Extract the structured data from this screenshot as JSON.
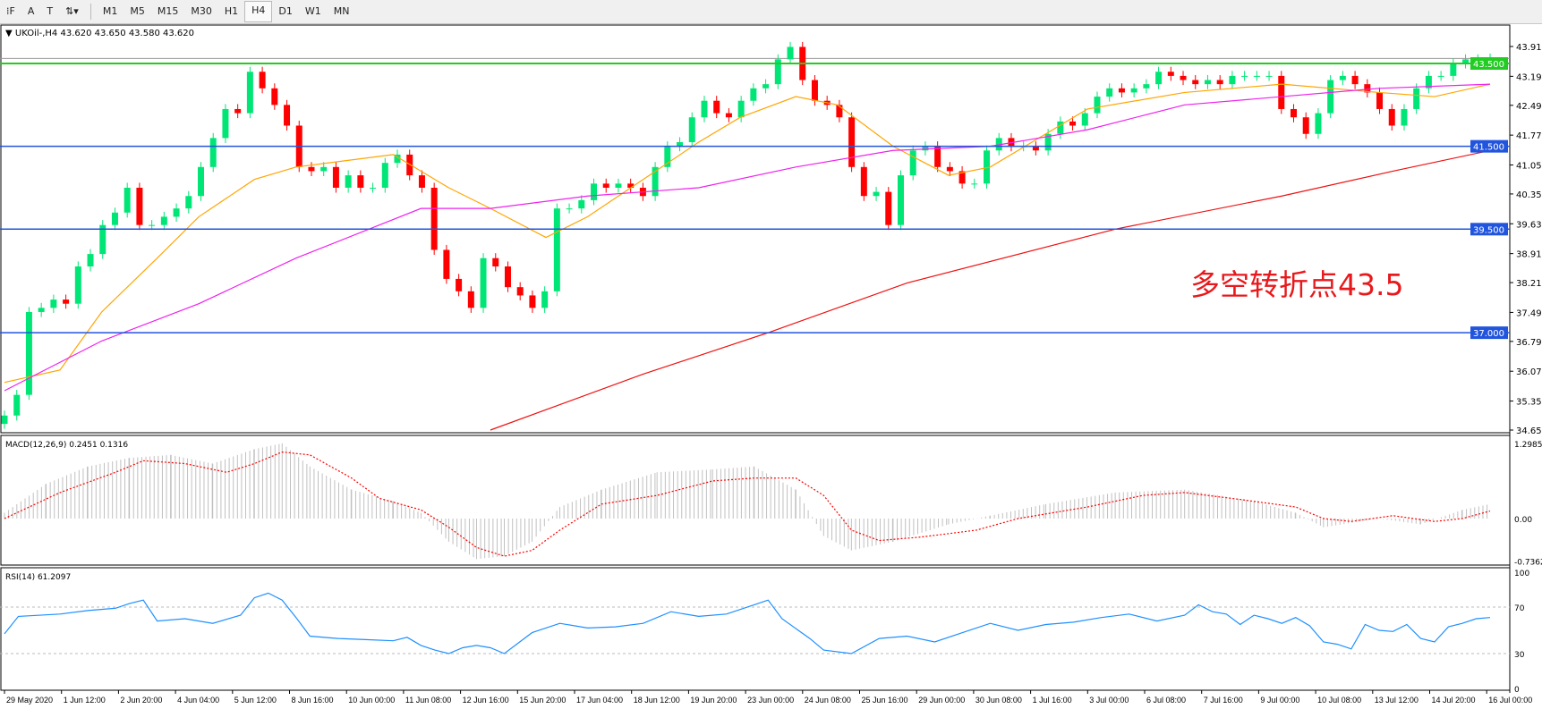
{
  "toolbar": {
    "tools": [
      {
        "name": "fibo-tool",
        "glyph": "⁞F"
      },
      {
        "name": "text-tool",
        "glyph": "A"
      },
      {
        "name": "label-tool",
        "glyph": "T"
      },
      {
        "name": "arrows-tool",
        "glyph": "⇅▾"
      }
    ],
    "timeframes": [
      "M1",
      "M5",
      "M15",
      "M30",
      "H1",
      "H4",
      "D1",
      "W1",
      "MN"
    ],
    "active_timeframe": "H4"
  },
  "main": {
    "title": "UKOil-,H4  43.620 43.650 43.580 43.620",
    "annotation": "多空转折点43.5",
    "annotation_color": "#e8191c",
    "price_ticks": [
      "43.910",
      "43.190",
      "42.490",
      "41.770",
      "41.050",
      "40.350",
      "39.630",
      "38.910",
      "38.210",
      "37.490",
      "36.790",
      "36.070",
      "35.350",
      "34.650"
    ],
    "current_price": "43.620",
    "levels": [
      {
        "label": "43.500",
        "value": 43.5,
        "color": "#22cc22"
      },
      {
        "label": "41.500",
        "value": 41.5,
        "color": "#2255dd"
      },
      {
        "label": "39.500",
        "value": 39.5,
        "color": "#2255dd"
      },
      {
        "label": "37.000",
        "value": 37.0,
        "color": "#2255dd"
      }
    ]
  },
  "macd": {
    "title": "MACD(12,26,9) 0.2451 0.1316",
    "ticks": [
      "1.2985",
      "0.00",
      "-0.7362"
    ]
  },
  "rsi": {
    "title": "RSI(14) 61.2097",
    "ticks": [
      "100",
      "70",
      "30",
      "0"
    ]
  },
  "time_labels": [
    "29 May 2020",
    "1 Jun 12:00",
    "2 Jun 20:00",
    "4 Jun 04:00",
    "5 Jun 12:00",
    "8 Jun 16:00",
    "10 Jun 00:00",
    "11 Jun 08:00",
    "12 Jun 16:00",
    "15 Jun 20:00",
    "17 Jun 04:00",
    "18 Jun 12:00",
    "19 Jun 20:00",
    "23 Jun 00:00",
    "24 Jun 08:00",
    "25 Jun 16:00",
    "29 Jun 00:00",
    "30 Jun 08:00",
    "1 Jul 16:00",
    "3 Jul 00:00",
    "6 Jul 08:00",
    "7 Jul 16:00",
    "9 Jul 00:00",
    "10 Jul 08:00",
    "13 Jul 12:00",
    "14 Jul 20:00",
    "16 Jul 00:00"
  ],
  "chart_data": {
    "type": "candlestick",
    "symbol": "UKOil-",
    "timeframe": "H4",
    "ylim": [
      34.65,
      43.91
    ],
    "closes": [
      35.0,
      35.5,
      37.5,
      37.6,
      37.8,
      37.7,
      38.6,
      38.9,
      39.6,
      39.9,
      40.5,
      39.6,
      39.6,
      39.8,
      40.0,
      40.3,
      41.0,
      41.7,
      42.4,
      42.3,
      43.3,
      42.9,
      42.5,
      42.0,
      41.0,
      40.9,
      41.0,
      40.5,
      40.8,
      40.5,
      40.5,
      41.1,
      41.3,
      40.8,
      40.5,
      39.0,
      38.3,
      38.0,
      37.6,
      38.8,
      38.6,
      38.1,
      37.9,
      37.6,
      38.0,
      40.0,
      40.0,
      40.2,
      40.6,
      40.5,
      40.6,
      40.5,
      40.3,
      41.0,
      41.5,
      41.6,
      42.2,
      42.6,
      42.3,
      42.2,
      42.6,
      42.9,
      43.0,
      43.6,
      43.9,
      43.1,
      42.6,
      42.5,
      42.2,
      41.0,
      40.3,
      40.4,
      39.6,
      40.8,
      41.4,
      41.5,
      41.0,
      40.9,
      40.6,
      40.6,
      41.4,
      41.7,
      41.5,
      41.5,
      41.4,
      41.8,
      42.1,
      42.0,
      42.3,
      42.7,
      42.9,
      42.8,
      42.9,
      43.0,
      43.3,
      43.2,
      43.1,
      43.0,
      43.1,
      43.0,
      43.2,
      43.2,
      43.2,
      43.2,
      42.4,
      42.2,
      41.8,
      42.3,
      43.1,
      43.2,
      43.0,
      42.8,
      42.4,
      42.0,
      42.4,
      42.9,
      43.2,
      43.2,
      43.5,
      43.6,
      43.6,
      43.62
    ],
    "ma_lines": [
      {
        "color": "#ffa500",
        "points": [
          [
            0,
            35.8
          ],
          [
            4,
            36.1
          ],
          [
            7,
            37.5
          ],
          [
            11,
            38.8
          ],
          [
            14,
            39.8
          ],
          [
            18,
            40.7
          ],
          [
            21,
            41.0
          ],
          [
            28,
            41.3
          ],
          [
            32,
            40.5
          ],
          [
            35,
            40.0
          ],
          [
            39,
            39.3
          ],
          [
            42,
            39.8
          ],
          [
            46,
            40.7
          ],
          [
            50,
            41.6
          ],
          [
            53,
            42.2
          ],
          [
            57,
            42.7
          ],
          [
            60,
            42.5
          ],
          [
            64,
            41.5
          ],
          [
            68,
            40.8
          ],
          [
            71,
            41.0
          ],
          [
            74,
            41.6
          ],
          [
            78,
            42.4
          ],
          [
            85,
            42.8
          ],
          [
            92,
            43.0
          ],
          [
            99,
            42.8
          ],
          [
            103,
            42.7
          ],
          [
            107,
            43.0
          ]
        ]
      },
      {
        "color": "#ee22ee",
        "points": [
          [
            0,
            35.6
          ],
          [
            7,
            36.8
          ],
          [
            14,
            37.7
          ],
          [
            21,
            38.8
          ],
          [
            30,
            40.0
          ],
          [
            35,
            40.0
          ],
          [
            42,
            40.3
          ],
          [
            50,
            40.5
          ],
          [
            57,
            41.0
          ],
          [
            64,
            41.4
          ],
          [
            71,
            41.5
          ],
          [
            78,
            41.9
          ],
          [
            85,
            42.5
          ],
          [
            92,
            42.7
          ],
          [
            99,
            42.9
          ],
          [
            107,
            43.0
          ]
        ]
      },
      {
        "color": "#ee1111",
        "points": [
          [
            35,
            34.65
          ],
          [
            46,
            36.0
          ],
          [
            55,
            37.0
          ],
          [
            65,
            38.2
          ],
          [
            80,
            39.5
          ],
          [
            92,
            40.3
          ],
          [
            100,
            40.9
          ],
          [
            107,
            41.4
          ]
        ]
      }
    ],
    "macd_hist": [
      [
        0,
        0.1
      ],
      [
        3,
        0.6
      ],
      [
        6,
        0.9
      ],
      [
        9,
        1.05
      ],
      [
        12,
        1.1
      ],
      [
        15,
        0.95
      ],
      [
        18,
        1.2
      ],
      [
        20,
        1.3
      ],
      [
        22,
        0.9
      ],
      [
        25,
        0.5
      ],
      [
        28,
        0.3
      ],
      [
        30,
        0.1
      ],
      [
        32,
        -0.4
      ],
      [
        34,
        -0.7
      ],
      [
        36,
        -0.65
      ],
      [
        38,
        -0.4
      ],
      [
        40,
        0.2
      ],
      [
        43,
        0.5
      ],
      [
        47,
        0.8
      ],
      [
        51,
        0.85
      ],
      [
        54,
        0.9
      ],
      [
        57,
        0.5
      ],
      [
        59,
        -0.3
      ],
      [
        61,
        -0.55
      ],
      [
        64,
        -0.4
      ],
      [
        68,
        -0.1
      ],
      [
        71,
        0.05
      ],
      [
        75,
        0.25
      ],
      [
        80,
        0.45
      ],
      [
        85,
        0.5
      ],
      [
        90,
        0.3
      ],
      [
        93,
        0.1
      ],
      [
        95,
        -0.15
      ],
      [
        99,
        0.0
      ],
      [
        102,
        -0.1
      ],
      [
        105,
        0.15
      ],
      [
        107,
        0.25
      ]
    ],
    "macd_signal": [
      [
        0,
        0.0
      ],
      [
        4,
        0.45
      ],
      [
        8,
        0.8
      ],
      [
        10,
        1.0
      ],
      [
        13,
        0.95
      ],
      [
        16,
        0.8
      ],
      [
        18,
        0.95
      ],
      [
        20,
        1.15
      ],
      [
        22,
        1.1
      ],
      [
        25,
        0.7
      ],
      [
        27,
        0.35
      ],
      [
        30,
        0.15
      ],
      [
        32,
        -0.15
      ],
      [
        34,
        -0.5
      ],
      [
        36,
        -0.65
      ],
      [
        38,
        -0.55
      ],
      [
        40,
        -0.2
      ],
      [
        43,
        0.25
      ],
      [
        47,
        0.4
      ],
      [
        51,
        0.65
      ],
      [
        54,
        0.7
      ],
      [
        57,
        0.7
      ],
      [
        59,
        0.4
      ],
      [
        61,
        -0.2
      ],
      [
        63,
        -0.38
      ],
      [
        66,
        -0.32
      ],
      [
        70,
        -0.2
      ],
      [
        73,
        0.0
      ],
      [
        78,
        0.2
      ],
      [
        82,
        0.4
      ],
      [
        85,
        0.45
      ],
      [
        89,
        0.33
      ],
      [
        93,
        0.2
      ],
      [
        95,
        0.0
      ],
      [
        97,
        -0.05
      ],
      [
        100,
        0.05
      ],
      [
        103,
        -0.05
      ],
      [
        105,
        0.0
      ],
      [
        107,
        0.13
      ]
    ],
    "rsi": [
      [
        0,
        47
      ],
      [
        1,
        62
      ],
      [
        4,
        64
      ],
      [
        6,
        67
      ],
      [
        8,
        69
      ],
      [
        9,
        73
      ],
      [
        10,
        76
      ],
      [
        11,
        58
      ],
      [
        13,
        60
      ],
      [
        15,
        56
      ],
      [
        17,
        63
      ],
      [
        18,
        78
      ],
      [
        19,
        82
      ],
      [
        20,
        76
      ],
      [
        21,
        61
      ],
      [
        22,
        45
      ],
      [
        24,
        43
      ],
      [
        26,
        42
      ],
      [
        28,
        41
      ],
      [
        29,
        44
      ],
      [
        30,
        37
      ],
      [
        31,
        33
      ],
      [
        32,
        30
      ],
      [
        33,
        35
      ],
      [
        34,
        37
      ],
      [
        35,
        35
      ],
      [
        36,
        30
      ],
      [
        38,
        48
      ],
      [
        40,
        56
      ],
      [
        42,
        52
      ],
      [
        44,
        53
      ],
      [
        46,
        56
      ],
      [
        48,
        66
      ],
      [
        50,
        62
      ],
      [
        52,
        64
      ],
      [
        54,
        72
      ],
      [
        55,
        76
      ],
      [
        56,
        60
      ],
      [
        58,
        43
      ],
      [
        59,
        33
      ],
      [
        61,
        30
      ],
      [
        63,
        43
      ],
      [
        65,
        45
      ],
      [
        67,
        40
      ],
      [
        69,
        48
      ],
      [
        71,
        56
      ],
      [
        73,
        50
      ],
      [
        75,
        55
      ],
      [
        77,
        57
      ],
      [
        79,
        61
      ],
      [
        81,
        64
      ],
      [
        83,
        58
      ],
      [
        85,
        63
      ],
      [
        86,
        72
      ],
      [
        87,
        66
      ],
      [
        88,
        64
      ],
      [
        89,
        55
      ],
      [
        90,
        63
      ],
      [
        91,
        60
      ],
      [
        92,
        56
      ],
      [
        93,
        61
      ],
      [
        94,
        54
      ],
      [
        95,
        40
      ],
      [
        96,
        38
      ],
      [
        97,
        34
      ],
      [
        98,
        55
      ],
      [
        99,
        50
      ],
      [
        100,
        49
      ],
      [
        101,
        55
      ],
      [
        102,
        43
      ],
      [
        103,
        40
      ],
      [
        104,
        53
      ],
      [
        105,
        56
      ],
      [
        106,
        60
      ],
      [
        107,
        61
      ]
    ],
    "colors": {
      "bull": "#00e676",
      "bear": "#ff0000",
      "macd_signal": "#ff0000",
      "macd_hist": "#c0c0c0",
      "rsi": "#1e90ff"
    }
  }
}
